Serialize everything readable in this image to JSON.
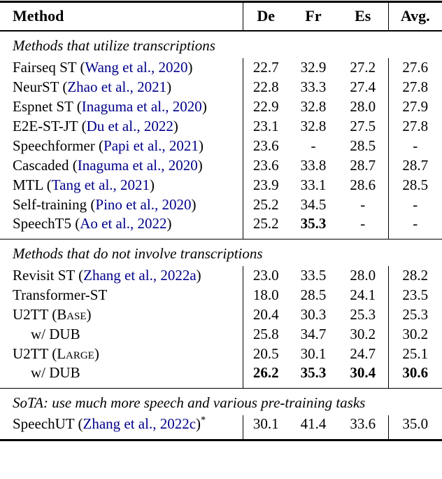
{
  "colors": {
    "citation_link": "#00008B",
    "text": "#000000",
    "rule": "#000000",
    "background": "#ffffff"
  },
  "table": {
    "columns": [
      "Method",
      "De",
      "Fr",
      "Es",
      "Avg."
    ],
    "sections": [
      {
        "title": "Methods that utilize transcriptions",
        "rows": [
          {
            "parts": [
              {
                "text": "Fairseq ST ("
              },
              {
                "text": "Wang et al., 2020",
                "style": "cite"
              },
              {
                "text": ")"
              }
            ],
            "values": [
              "22.7",
              "32.9",
              "27.2",
              "27.6"
            ]
          },
          {
            "parts": [
              {
                "text": "NeurST ("
              },
              {
                "text": "Zhao et al., 2021",
                "style": "cite"
              },
              {
                "text": ")"
              }
            ],
            "values": [
              "22.8",
              "33.3",
              "27.4",
              "27.8"
            ]
          },
          {
            "parts": [
              {
                "text": "Espnet ST ("
              },
              {
                "text": "Inaguma et al., 2020",
                "style": "cite"
              },
              {
                "text": ")"
              }
            ],
            "values": [
              "22.9",
              "32.8",
              "28.0",
              "27.9"
            ]
          },
          {
            "parts": [
              {
                "text": "E2E-ST-JT ("
              },
              {
                "text": "Du et al., 2022",
                "style": "cite"
              },
              {
                "text": ")"
              }
            ],
            "values": [
              "23.1",
              "32.8",
              "27.5",
              "27.8"
            ]
          },
          {
            "parts": [
              {
                "text": "Speechformer ("
              },
              {
                "text": "Papi et al., 2021",
                "style": "cite"
              },
              {
                "text": ")"
              }
            ],
            "values": [
              "23.6",
              "-",
              "28.5",
              "-"
            ]
          },
          {
            "parts": [
              {
                "text": "Cascaded ("
              },
              {
                "text": "Inaguma et al., 2020",
                "style": "cite"
              },
              {
                "text": ")"
              }
            ],
            "values": [
              "23.6",
              "33.8",
              "28.7",
              "28.7"
            ]
          },
          {
            "parts": [
              {
                "text": "MTL ("
              },
              {
                "text": "Tang et al., 2021",
                "style": "cite"
              },
              {
                "text": ")"
              }
            ],
            "values": [
              "23.9",
              "33.1",
              "28.6",
              "28.5"
            ]
          },
          {
            "parts": [
              {
                "text": "Self-training ("
              },
              {
                "text": "Pino et al., 2020",
                "style": "cite"
              },
              {
                "text": ")"
              }
            ],
            "values": [
              "25.2",
              "34.5",
              "-",
              "-"
            ]
          },
          {
            "parts": [
              {
                "text": "SpeechT5 ("
              },
              {
                "text": "Ao et al., 2022",
                "style": "cite"
              },
              {
                "text": ")"
              }
            ],
            "values": [
              "25.2",
              "35.3",
              "-",
              "-"
            ],
            "bold": [
              false,
              true,
              false,
              false
            ]
          }
        ]
      },
      {
        "title": "Methods that do not involve transcriptions",
        "rows": [
          {
            "parts": [
              {
                "text": "Revisit ST ("
              },
              {
                "text": "Zhang et al., 2022a",
                "style": "cite"
              },
              {
                "text": ")"
              }
            ],
            "values": [
              "23.0",
              "33.5",
              "28.0",
              "28.2"
            ]
          },
          {
            "parts": [
              {
                "text": "Transformer-ST"
              }
            ],
            "values": [
              "18.0",
              "28.5",
              "24.1",
              "23.5"
            ]
          },
          {
            "parts": [
              {
                "text": "U2TT ("
              },
              {
                "text": "Base",
                "style": "sc"
              },
              {
                "text": ")"
              }
            ],
            "values": [
              "20.4",
              "30.3",
              "25.3",
              "25.3"
            ]
          },
          {
            "parts": [
              {
                "text": "w/ DUB"
              }
            ],
            "indent": true,
            "values": [
              "25.8",
              "34.7",
              "30.2",
              "30.2"
            ]
          },
          {
            "parts": [
              {
                "text": "U2TT ("
              },
              {
                "text": "Large",
                "style": "sc"
              },
              {
                "text": ")"
              }
            ],
            "values": [
              "20.5",
              "30.1",
              "24.7",
              "25.1"
            ]
          },
          {
            "parts": [
              {
                "text": "w/ DUB"
              }
            ],
            "indent": true,
            "values": [
              "26.2",
              "35.3",
              "30.4",
              "30.6"
            ],
            "bold": [
              true,
              true,
              true,
              true
            ]
          }
        ]
      },
      {
        "title": "SoTA: use much more speech and various pre-training tasks",
        "rows": [
          {
            "parts": [
              {
                "text": "SpeechUT ("
              },
              {
                "text": "Zhang et al., 2022c",
                "style": "cite"
              },
              {
                "text": ")"
              },
              {
                "text": "*",
                "style": "sup"
              }
            ],
            "values": [
              "30.1",
              "41.4",
              "33.6",
              "35.0"
            ]
          }
        ]
      }
    ]
  }
}
